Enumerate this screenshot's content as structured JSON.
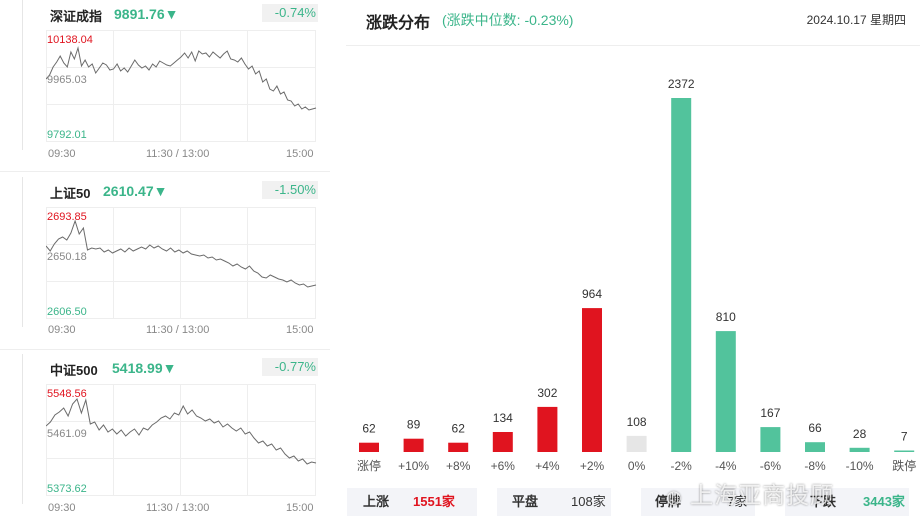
{
  "indices": [
    {
      "name": "深证成指",
      "price": "9891.76▼",
      "change": "-0.74%",
      "ymax_label": "10138.04",
      "ymid_label": "9965.03",
      "ymin_label": "9792.01",
      "series": [
        45,
        41,
        33,
        28,
        22,
        29,
        33,
        18,
        25,
        14,
        32,
        26,
        33,
        30,
        39,
        34,
        29,
        31,
        36,
        35,
        30,
        37,
        34,
        38,
        32,
        26,
        31,
        34,
        32,
        36,
        30,
        33,
        27,
        29,
        31,
        32,
        29,
        26,
        23,
        19,
        24,
        18,
        27,
        17,
        20,
        19,
        23,
        18,
        21,
        24,
        20,
        17,
        25,
        26,
        28,
        24,
        30,
        35,
        32,
        40,
        37,
        48,
        45,
        55,
        57,
        52,
        60,
        58,
        66,
        67,
        72,
        70,
        75,
        73,
        76,
        75,
        74
      ]
    },
    {
      "name": "上证50",
      "price": "2610.47▼",
      "change": "-1.50%",
      "ymax_label": "2693.85",
      "ymid_label": "2650.18",
      "ymin_label": "2606.50",
      "series": [
        35,
        40,
        33,
        28,
        26,
        29,
        22,
        10,
        23,
        17,
        39,
        37,
        38,
        37,
        41,
        39,
        42,
        40,
        38,
        41,
        37,
        40,
        38,
        36,
        38,
        34,
        37,
        35,
        38,
        40,
        37,
        41,
        39,
        42,
        40,
        43,
        44,
        45,
        44,
        47,
        46,
        49,
        48,
        50,
        52,
        55,
        53,
        56,
        58,
        55,
        60,
        62,
        66,
        67,
        64,
        66,
        68,
        69,
        71,
        69,
        72,
        74,
        73,
        76,
        75,
        74
      ]
    },
    {
      "name": "中证500",
      "price": "5418.99▼",
      "change": "-0.77%",
      "ymax_label": "5548.56",
      "ymid_label": "5461.09",
      "ymin_label": "5373.62",
      "series": [
        38,
        34,
        27,
        24,
        20,
        28,
        16,
        11,
        25,
        12,
        36,
        34,
        42,
        37,
        44,
        41,
        46,
        42,
        48,
        44,
        41,
        47,
        40,
        42,
        37,
        34,
        30,
        28,
        31,
        25,
        27,
        18,
        26,
        22,
        28,
        30,
        33,
        31,
        35,
        33,
        39,
        36,
        40,
        43,
        40,
        46,
        44,
        50,
        55,
        53,
        58,
        56,
        62,
        60,
        66,
        70,
        68,
        73,
        71,
        76,
        74,
        75
      ]
    }
  ],
  "time_labels": [
    "09:30",
    "11:30 / 13:00",
    "15:00"
  ],
  "distribution": {
    "title": "涨跌分布",
    "subtitle": "(涨跌中位数: -0.23%)",
    "date": "2024.10.17 星期四"
  },
  "chart_data": {
    "type": "bar",
    "title": "涨跌分布",
    "categories": [
      "涨停",
      "+10%",
      "+8%",
      "+6%",
      "+4%",
      "+2%",
      "0%",
      "-2%",
      "-4%",
      "-6%",
      "-8%",
      "-10%",
      "跌停"
    ],
    "values": [
      62,
      89,
      62,
      134,
      302,
      964,
      108,
      2372,
      810,
      167,
      66,
      28,
      7
    ],
    "value_labels": [
      "62",
      "89",
      "62",
      "134",
      "302",
      "964",
      "108",
      "2372",
      "810",
      "167",
      "66",
      "28",
      "7"
    ],
    "colors": [
      "#e0141f",
      "#e0141f",
      "#e0141f",
      "#e0141f",
      "#e0141f",
      "#e0141f",
      "#e6e6e6",
      "#52c39c",
      "#52c39c",
      "#52c39c",
      "#52c39c",
      "#52c39c",
      "#52c39c"
    ],
    "ylim": [
      0,
      2372
    ]
  },
  "footer": {
    "up_label": "上涨",
    "up_value": "1551家",
    "flat_label": "平盘",
    "flat_value": "108家",
    "halt_label": "停牌",
    "halt_value": "7家",
    "down_label": "下跌",
    "down_value": "3443家"
  },
  "watermark": "上海亚商投顾",
  "colors": {
    "up": "#e0141f",
    "down": "#3bb58a",
    "flat": "#e6e6e6"
  }
}
